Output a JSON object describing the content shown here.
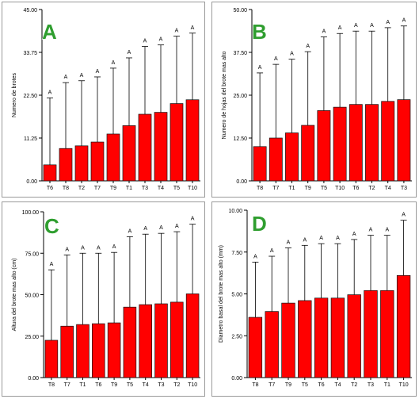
{
  "colors": {
    "bar": "#ff0000",
    "bar_edge": "#111111",
    "letter": "#2f9e2f",
    "axis": "#000000"
  },
  "chart_data": [
    {
      "type": "bar",
      "letter": "A",
      "ylabel": "Numero de brotes",
      "ylim": [
        0,
        45
      ],
      "yticks": [
        "0.00",
        "11.25",
        "22.50",
        "33.75",
        "45.00"
      ],
      "categories": [
        "T6",
        "T8",
        "T2",
        "T7",
        "T9",
        "T1",
        "T3",
        "T4",
        "T5",
        "T10"
      ],
      "values": [
        4.2,
        8.5,
        9.2,
        10.2,
        12.3,
        14.5,
        17.5,
        18.0,
        20.3,
        21.3
      ],
      "error_upper": [
        21.8,
        25.8,
        26.3,
        27.3,
        29.6,
        32.3,
        35.3,
        35.7,
        38.0,
        38.8
      ],
      "labels": [
        "A",
        "A",
        "A",
        "A",
        "A",
        "A",
        "A",
        "A",
        "A",
        "A"
      ]
    },
    {
      "type": "bar",
      "letter": "B",
      "ylabel": "Numero de hojas del brote mas alto",
      "ylim": [
        0,
        50
      ],
      "yticks": [
        "0.00",
        "12.50",
        "25.00",
        "37.50",
        "50.00"
      ],
      "categories": [
        "T8",
        "T7",
        "T1",
        "T9",
        "T5",
        "T10",
        "T6",
        "T2",
        "T4",
        "T3"
      ],
      "values": [
        10.0,
        12.5,
        14.0,
        16.2,
        20.5,
        21.5,
        22.3,
        22.3,
        23.2,
        23.7
      ],
      "error_upper": [
        31.5,
        34.0,
        35.5,
        37.7,
        42.0,
        43.0,
        43.7,
        43.7,
        44.7,
        45.2
      ],
      "labels": [
        "A",
        "A",
        "A",
        "A",
        "A",
        "A",
        "A",
        "A",
        "A",
        "A"
      ]
    },
    {
      "type": "bar",
      "letter": "C",
      "ylabel": "Altura del brote mas alto (cm)",
      "ylim": [
        0,
        100
      ],
      "yticks": [
        "0.00",
        "25.00",
        "50.00",
        "75.00",
        "100.00"
      ],
      "categories": [
        "T8",
        "T7",
        "T1",
        "T6",
        "T9",
        "T5",
        "T4",
        "T3",
        "T2",
        "T10"
      ],
      "values": [
        22.5,
        31.0,
        32.0,
        32.5,
        33.0,
        42.5,
        44.0,
        44.5,
        45.5,
        50.5
      ],
      "error_upper": [
        65.0,
        74.0,
        75.0,
        75.0,
        75.5,
        85.0,
        86.5,
        87.0,
        88.0,
        92.5
      ],
      "labels": [
        "A",
        "A",
        "A",
        "A",
        "A",
        "A",
        "A",
        "A",
        "A",
        "A"
      ]
    },
    {
      "type": "bar",
      "letter": "D",
      "ylabel": "Diametro basal del brote mas alto (mm)",
      "ylim": [
        0,
        10
      ],
      "yticks": [
        "0.00",
        "2.50",
        "5.00",
        "7.50",
        "10.00"
      ],
      "categories": [
        "T8",
        "T7",
        "T9",
        "T5",
        "T6",
        "T4",
        "T2",
        "T3",
        "T1",
        "T10"
      ],
      "values": [
        3.6,
        3.95,
        4.45,
        4.6,
        4.75,
        4.75,
        4.95,
        5.2,
        5.2,
        6.1
      ],
      "error_upper": [
        6.9,
        7.25,
        7.75,
        7.9,
        8.0,
        8.0,
        8.25,
        8.5,
        8.5,
        9.4
      ],
      "labels": [
        "A",
        "A",
        "A",
        "A",
        "A",
        "A",
        "A",
        "A",
        "A",
        "A"
      ]
    }
  ]
}
